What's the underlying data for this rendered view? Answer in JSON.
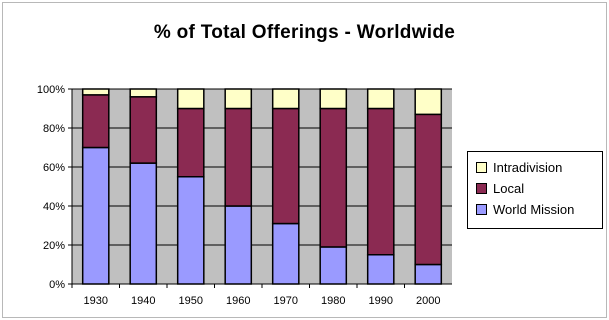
{
  "chart_data": {
    "type": "bar",
    "stacked": true,
    "title": "% of Total Offerings - Worldwide",
    "xlabel": "",
    "ylabel": "",
    "categories": [
      "1930",
      "1940",
      "1950",
      "1960",
      "1970",
      "1980",
      "1990",
      "2000"
    ],
    "series": [
      {
        "name": "World Mission",
        "color": "#9a9aff",
        "values": [
          70,
          62,
          55,
          40,
          31,
          19,
          15,
          10
        ]
      },
      {
        "name": "Local",
        "color": "#8b2a52",
        "values": [
          27,
          34,
          35,
          50,
          59,
          71,
          75,
          77
        ]
      },
      {
        "name": "Intradivision",
        "color": "#ffffc8",
        "values": [
          3,
          4,
          10,
          10,
          10,
          10,
          10,
          13
        ]
      }
    ],
    "ylim": [
      0,
      100
    ],
    "yticks": [
      "0%",
      "20%",
      "40%",
      "60%",
      "80%",
      "100%"
    ],
    "grid": true,
    "legend_position": "right",
    "legend_order": [
      "Intradivision",
      "Local",
      "World Mission"
    ],
    "plot_background": "#c0c0c0"
  }
}
